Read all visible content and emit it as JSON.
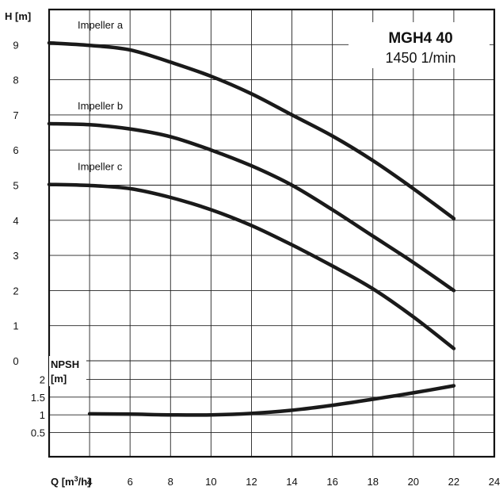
{
  "chart_data": {
    "type": "line",
    "title": "MGH4 40",
    "subtitle": "1450 1/min",
    "xlabel": "Q [m3/h]",
    "xlabel_parts": {
      "base": "Q [m",
      "sup": "3",
      "tail": "/h]"
    },
    "xlim": [
      2,
      24
    ],
    "x_ticks": [
      4,
      6,
      8,
      10,
      12,
      14,
      16,
      18,
      20,
      22,
      24
    ],
    "grid": true,
    "head_panel": {
      "ylabel": "H [m]",
      "ylim": [
        0,
        10
      ],
      "y_ticks": [
        0,
        1,
        2,
        3,
        4,
        5,
        6,
        7,
        8,
        9
      ],
      "series": [
        {
          "name": "Impeller a",
          "x": [
            2,
            4,
            6,
            8,
            10,
            12,
            14,
            16,
            18,
            20,
            22
          ],
          "values": [
            9.05,
            8.98,
            8.85,
            8.5,
            8.1,
            7.6,
            7.0,
            6.4,
            5.7,
            4.9,
            4.05
          ]
        },
        {
          "name": "Impeller b",
          "x": [
            2,
            4,
            6,
            8,
            10,
            12,
            14,
            16,
            18,
            20,
            22
          ],
          "values": [
            6.75,
            6.72,
            6.6,
            6.38,
            6.0,
            5.55,
            5.0,
            4.3,
            3.55,
            2.8,
            2.0
          ]
        },
        {
          "name": "Impeller c",
          "x": [
            2,
            4,
            6,
            8,
            10,
            12,
            14,
            16,
            18,
            20,
            22
          ],
          "values": [
            5.02,
            4.99,
            4.9,
            4.65,
            4.3,
            3.85,
            3.3,
            2.7,
            2.05,
            1.25,
            0.35
          ]
        }
      ]
    },
    "npsh_panel": {
      "ylabel": "NPSH [m]",
      "ylabel_lines": [
        "NPSH",
        "[m]"
      ],
      "ylim": [
        0,
        2.5
      ],
      "y_ticks": [
        "0.5",
        "1",
        "1.5",
        "2"
      ],
      "series": [
        {
          "x": [
            4,
            6,
            8,
            10,
            12,
            14,
            16,
            18,
            20,
            22
          ],
          "values": [
            1.03,
            1.02,
            1.0,
            1.0,
            1.04,
            1.13,
            1.27,
            1.44,
            1.62,
            1.82
          ]
        }
      ]
    }
  }
}
